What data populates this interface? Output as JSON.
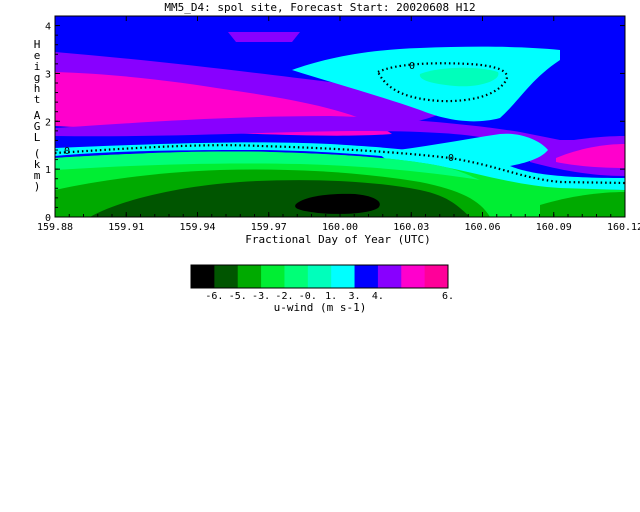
{
  "title": "MM5_D4: spol site,  Forecast Start: 20020608 H12",
  "chart_data": {
    "type": "heatmap",
    "subtype": "filled-contour",
    "title": "MM5_D4: spol site,  Forecast Start: 20020608 H12",
    "xlabel": "Fractional Day of Year (UTC)",
    "ylabel": "Height AGL (km)",
    "xlim": [
      159.88,
      160.12
    ],
    "ylim": [
      0,
      4.2
    ],
    "x_ticks": [
      "159.88",
      "159.91",
      "159.94",
      "159.97",
      "160.00",
      "160.03",
      "160.06",
      "160.09",
      "160.12"
    ],
    "y_ticks": [
      "0",
      "1",
      "2",
      "3",
      "4"
    ],
    "contour_label": "0",
    "colorbar": {
      "label": "u-wind (m s-1)",
      "tick_labels": [
        "-6.",
        "-5.",
        "-3.",
        "-2.",
        "-0.",
        "1.",
        "3.",
        "4.",
        "6."
      ],
      "colors": [
        "#000000",
        "#005500",
        "#00aa00",
        "#00ee33",
        "#00ff77",
        "#00ffbb",
        "#00ffff",
        "#0000ff",
        "#8800ff",
        "#ff00cc",
        "#ff0099"
      ]
    },
    "regions": [
      {
        "level": "1 to 3",
        "color": "#0000ff",
        "desc": "upper layer above 3.5 km and band near 1.6-1.9 km"
      },
      {
        "level": "3 to 4",
        "color": "#8800ff",
        "desc": "transition bands"
      },
      {
        "level": "4 to 6",
        "color": "#ff00cc",
        "desc": "2.0-3.3 km on left side; 0.9-1.5 km on right side"
      },
      {
        "level": "-0 to 1",
        "color": "#00ffff",
        "desc": "2.3-3.7 km right of 160.00; 1.0-1.6 km right of 160.04"
      },
      {
        "level": "-3 to -2",
        "color": "#00ee33",
        "desc": "low levels below 1.5 km"
      },
      {
        "level": "-6 to -5",
        "color": "#000000",
        "desc": "core near 160.00 below 0.4 km"
      }
    ]
  }
}
